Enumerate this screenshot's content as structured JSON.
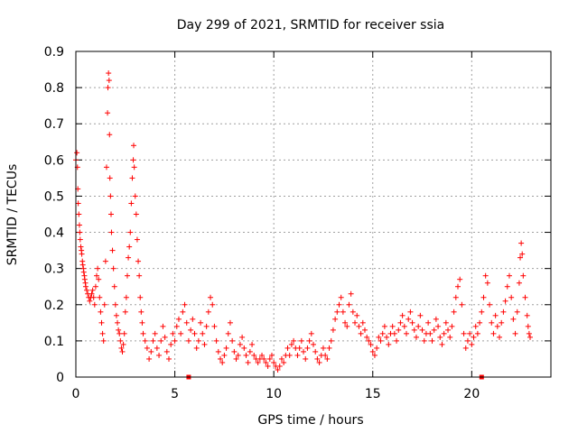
{
  "chart_data": {
    "type": "scatter",
    "title": "Day 299 of 2021, SRMTID for receiver ssia",
    "xlabel": "GPS time / hours",
    "ylabel": "SRMTID / TECUs",
    "xlim": [
      0,
      24
    ],
    "ylim": [
      0,
      0.9
    ],
    "xticks": [
      0,
      5,
      10,
      15,
      20
    ],
    "yticks": [
      0,
      0.1,
      0.2,
      0.3,
      0.4,
      0.5,
      0.6,
      0.7,
      0.8,
      0.9
    ],
    "xtick_labels": [
      "0",
      "5",
      "10",
      "15",
      "20"
    ],
    "ytick_labels": [
      "0",
      "0.1",
      "0.2",
      "0.3",
      "0.4",
      "0.5",
      "0.6",
      "0.7",
      "0.8",
      "0.9"
    ],
    "grid": true,
    "marker": "+",
    "color": "#ff0000",
    "x_axis_markers": [
      5.7,
      20.5
    ],
    "series": [
      {
        "name": "SRMTID",
        "points": [
          [
            0.0,
            0.6
          ],
          [
            0.05,
            0.62
          ],
          [
            0.08,
            0.58
          ],
          [
            0.1,
            0.52
          ],
          [
            0.12,
            0.48
          ],
          [
            0.15,
            0.45
          ],
          [
            0.18,
            0.42
          ],
          [
            0.2,
            0.4
          ],
          [
            0.22,
            0.38
          ],
          [
            0.25,
            0.36
          ],
          [
            0.28,
            0.35
          ],
          [
            0.3,
            0.34
          ],
          [
            0.33,
            0.32
          ],
          [
            0.35,
            0.31
          ],
          [
            0.38,
            0.3
          ],
          [
            0.4,
            0.29
          ],
          [
            0.43,
            0.28
          ],
          [
            0.45,
            0.27
          ],
          [
            0.48,
            0.26
          ],
          [
            0.5,
            0.25
          ],
          [
            0.55,
            0.24
          ],
          [
            0.6,
            0.23
          ],
          [
            0.65,
            0.22
          ],
          [
            0.7,
            0.21
          ],
          [
            0.75,
            0.22
          ],
          [
            0.8,
            0.23
          ],
          [
            0.85,
            0.24
          ],
          [
            0.9,
            0.22
          ],
          [
            0.95,
            0.2
          ],
          [
            1.0,
            0.25
          ],
          [
            1.05,
            0.28
          ],
          [
            1.1,
            0.3
          ],
          [
            1.15,
            0.27
          ],
          [
            1.2,
            0.22
          ],
          [
            1.25,
            0.18
          ],
          [
            1.3,
            0.15
          ],
          [
            1.35,
            0.12
          ],
          [
            1.4,
            0.1
          ],
          [
            1.45,
            0.2
          ],
          [
            1.5,
            0.32
          ],
          [
            1.55,
            0.58
          ],
          [
            1.6,
            0.73
          ],
          [
            1.62,
            0.8
          ],
          [
            1.65,
            0.84
          ],
          [
            1.68,
            0.82
          ],
          [
            1.7,
            0.67
          ],
          [
            1.72,
            0.55
          ],
          [
            1.75,
            0.5
          ],
          [
            1.78,
            0.45
          ],
          [
            1.8,
            0.4
          ],
          [
            1.85,
            0.35
          ],
          [
            1.9,
            0.3
          ],
          [
            1.95,
            0.25
          ],
          [
            2.0,
            0.2
          ],
          [
            2.05,
            0.17
          ],
          [
            2.1,
            0.15
          ],
          [
            2.15,
            0.13
          ],
          [
            2.2,
            0.12
          ],
          [
            2.25,
            0.1
          ],
          [
            2.3,
            0.08
          ],
          [
            2.35,
            0.07
          ],
          [
            2.4,
            0.09
          ],
          [
            2.45,
            0.12
          ],
          [
            2.5,
            0.18
          ],
          [
            2.55,
            0.22
          ],
          [
            2.6,
            0.28
          ],
          [
            2.65,
            0.33
          ],
          [
            2.7,
            0.36
          ],
          [
            2.75,
            0.4
          ],
          [
            2.8,
            0.48
          ],
          [
            2.85,
            0.55
          ],
          [
            2.9,
            0.6
          ],
          [
            2.92,
            0.64
          ],
          [
            2.95,
            0.58
          ],
          [
            3.0,
            0.5
          ],
          [
            3.05,
            0.45
          ],
          [
            3.1,
            0.38
          ],
          [
            3.15,
            0.32
          ],
          [
            3.2,
            0.28
          ],
          [
            3.25,
            0.22
          ],
          [
            3.3,
            0.18
          ],
          [
            3.35,
            0.15
          ],
          [
            3.4,
            0.12
          ],
          [
            3.5,
            0.1
          ],
          [
            3.6,
            0.08
          ],
          [
            3.7,
            0.05
          ],
          [
            3.8,
            0.07
          ],
          [
            3.9,
            0.1
          ],
          [
            4.0,
            0.12
          ],
          [
            4.1,
            0.08
          ],
          [
            4.2,
            0.06
          ],
          [
            4.3,
            0.1
          ],
          [
            4.4,
            0.14
          ],
          [
            4.5,
            0.11
          ],
          [
            4.6,
            0.07
          ],
          [
            4.7,
            0.05
          ],
          [
            4.8,
            0.09
          ],
          [
            4.9,
            0.12
          ],
          [
            5.0,
            0.1
          ],
          [
            5.1,
            0.14
          ],
          [
            5.2,
            0.16
          ],
          [
            5.3,
            0.12
          ],
          [
            5.4,
            0.18
          ],
          [
            5.5,
            0.2
          ],
          [
            5.6,
            0.15
          ],
          [
            5.7,
            0.1
          ],
          [
            5.8,
            0.13
          ],
          [
            5.9,
            0.16
          ],
          [
            6.0,
            0.12
          ],
          [
            6.1,
            0.08
          ],
          [
            6.2,
            0.1
          ],
          [
            6.3,
            0.15
          ],
          [
            6.4,
            0.12
          ],
          [
            6.5,
            0.09
          ],
          [
            6.6,
            0.14
          ],
          [
            6.7,
            0.18
          ],
          [
            6.8,
            0.22
          ],
          [
            6.9,
            0.2
          ],
          [
            7.0,
            0.14
          ],
          [
            7.1,
            0.1
          ],
          [
            7.2,
            0.07
          ],
          [
            7.3,
            0.05
          ],
          [
            7.4,
            0.04
          ],
          [
            7.5,
            0.06
          ],
          [
            7.6,
            0.08
          ],
          [
            7.7,
            0.12
          ],
          [
            7.8,
            0.15
          ],
          [
            7.9,
            0.1
          ],
          [
            8.0,
            0.07
          ],
          [
            8.1,
            0.05
          ],
          [
            8.2,
            0.06
          ],
          [
            8.3,
            0.09
          ],
          [
            8.4,
            0.11
          ],
          [
            8.5,
            0.08
          ],
          [
            8.6,
            0.06
          ],
          [
            8.7,
            0.04
          ],
          [
            8.8,
            0.07
          ],
          [
            8.9,
            0.09
          ],
          [
            9.0,
            0.06
          ],
          [
            9.1,
            0.05
          ],
          [
            9.2,
            0.04
          ],
          [
            9.3,
            0.05
          ],
          [
            9.4,
            0.06
          ],
          [
            9.5,
            0.05
          ],
          [
            9.6,
            0.04
          ],
          [
            9.7,
            0.03
          ],
          [
            9.8,
            0.05
          ],
          [
            9.9,
            0.06
          ],
          [
            10.0,
            0.04
          ],
          [
            10.1,
            0.03
          ],
          [
            10.2,
            0.02
          ],
          [
            10.3,
            0.03
          ],
          [
            10.4,
            0.05
          ],
          [
            10.5,
            0.04
          ],
          [
            10.6,
            0.06
          ],
          [
            10.7,
            0.08
          ],
          [
            10.8,
            0.06
          ],
          [
            10.9,
            0.09
          ],
          [
            11.0,
            0.1
          ],
          [
            11.1,
            0.08
          ],
          [
            11.2,
            0.06
          ],
          [
            11.3,
            0.08
          ],
          [
            11.4,
            0.1
          ],
          [
            11.5,
            0.07
          ],
          [
            11.6,
            0.05
          ],
          [
            11.7,
            0.08
          ],
          [
            11.8,
            0.1
          ],
          [
            11.9,
            0.12
          ],
          [
            12.0,
            0.09
          ],
          [
            12.1,
            0.07
          ],
          [
            12.2,
            0.05
          ],
          [
            12.3,
            0.04
          ],
          [
            12.4,
            0.06
          ],
          [
            12.5,
            0.08
          ],
          [
            12.6,
            0.06
          ],
          [
            12.7,
            0.05
          ],
          [
            12.8,
            0.08
          ],
          [
            12.9,
            0.1
          ],
          [
            13.0,
            0.13
          ],
          [
            13.1,
            0.16
          ],
          [
            13.2,
            0.18
          ],
          [
            13.3,
            0.2
          ],
          [
            13.4,
            0.22
          ],
          [
            13.5,
            0.18
          ],
          [
            13.6,
            0.15
          ],
          [
            13.7,
            0.14
          ],
          [
            13.8,
            0.2
          ],
          [
            13.9,
            0.23
          ],
          [
            14.0,
            0.18
          ],
          [
            14.1,
            0.15
          ],
          [
            14.2,
            0.17
          ],
          [
            14.3,
            0.14
          ],
          [
            14.4,
            0.12
          ],
          [
            14.5,
            0.15
          ],
          [
            14.6,
            0.13
          ],
          [
            14.7,
            0.11
          ],
          [
            14.8,
            0.1
          ],
          [
            14.9,
            0.09
          ],
          [
            15.0,
            0.07
          ],
          [
            15.1,
            0.06
          ],
          [
            15.2,
            0.08
          ],
          [
            15.3,
            0.11
          ],
          [
            15.4,
            0.1
          ],
          [
            15.5,
            0.12
          ],
          [
            15.6,
            0.14
          ],
          [
            15.7,
            0.11
          ],
          [
            15.8,
            0.09
          ],
          [
            15.9,
            0.12
          ],
          [
            16.0,
            0.14
          ],
          [
            16.1,
            0.12
          ],
          [
            16.2,
            0.1
          ],
          [
            16.3,
            0.13
          ],
          [
            16.4,
            0.15
          ],
          [
            16.5,
            0.17
          ],
          [
            16.6,
            0.14
          ],
          [
            16.7,
            0.12
          ],
          [
            16.8,
            0.16
          ],
          [
            16.9,
            0.18
          ],
          [
            17.0,
            0.15
          ],
          [
            17.1,
            0.13
          ],
          [
            17.2,
            0.11
          ],
          [
            17.3,
            0.14
          ],
          [
            17.4,
            0.17
          ],
          [
            17.5,
            0.13
          ],
          [
            17.6,
            0.1
          ],
          [
            17.7,
            0.12
          ],
          [
            17.8,
            0.15
          ],
          [
            17.9,
            0.12
          ],
          [
            18.0,
            0.1
          ],
          [
            18.1,
            0.13
          ],
          [
            18.2,
            0.16
          ],
          [
            18.3,
            0.14
          ],
          [
            18.4,
            0.11
          ],
          [
            18.5,
            0.09
          ],
          [
            18.6,
            0.12
          ],
          [
            18.7,
            0.15
          ],
          [
            18.8,
            0.13
          ],
          [
            18.9,
            0.11
          ],
          [
            19.0,
            0.14
          ],
          [
            19.1,
            0.18
          ],
          [
            19.2,
            0.22
          ],
          [
            19.3,
            0.25
          ],
          [
            19.4,
            0.27
          ],
          [
            19.5,
            0.2
          ],
          [
            19.6,
            0.12
          ],
          [
            19.7,
            0.08
          ],
          [
            19.8,
            0.1
          ],
          [
            19.9,
            0.12
          ],
          [
            20.0,
            0.09
          ],
          [
            20.1,
            0.11
          ],
          [
            20.2,
            0.14
          ],
          [
            20.3,
            0.12
          ],
          [
            20.4,
            0.15
          ],
          [
            20.5,
            0.18
          ],
          [
            20.6,
            0.22
          ],
          [
            20.7,
            0.28
          ],
          [
            20.8,
            0.26
          ],
          [
            20.9,
            0.2
          ],
          [
            21.0,
            0.15
          ],
          [
            21.1,
            0.12
          ],
          [
            21.2,
            0.17
          ],
          [
            21.3,
            0.14
          ],
          [
            21.4,
            0.11
          ],
          [
            21.5,
            0.15
          ],
          [
            21.6,
            0.18
          ],
          [
            21.7,
            0.21
          ],
          [
            21.8,
            0.25
          ],
          [
            21.9,
            0.28
          ],
          [
            22.0,
            0.22
          ],
          [
            22.1,
            0.16
          ],
          [
            22.2,
            0.12
          ],
          [
            22.3,
            0.18
          ],
          [
            22.4,
            0.26
          ],
          [
            22.45,
            0.33
          ],
          [
            22.5,
            0.37
          ],
          [
            22.55,
            0.34
          ],
          [
            22.6,
            0.28
          ],
          [
            22.7,
            0.22
          ],
          [
            22.8,
            0.17
          ],
          [
            22.85,
            0.14
          ],
          [
            22.9,
            0.12
          ],
          [
            22.95,
            0.11
          ]
        ]
      }
    ]
  }
}
